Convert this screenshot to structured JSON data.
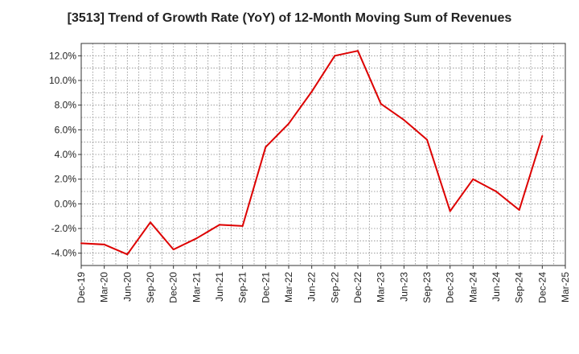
{
  "chart_data": {
    "type": "line",
    "title": "[3513]  Trend of Growth Rate (YoY) of 12-Month Moving Sum of Revenues",
    "xlabel": "",
    "ylabel": "",
    "x_ticks": [
      "Dec-19",
      "Mar-20",
      "Jun-20",
      "Sep-20",
      "Dec-20",
      "Mar-21",
      "Jun-21",
      "Sep-21",
      "Dec-21",
      "Mar-22",
      "Jun-22",
      "Sep-22",
      "Dec-22",
      "Mar-23",
      "Jun-23",
      "Sep-23",
      "Dec-23",
      "Mar-24",
      "Jun-24",
      "Sep-24",
      "Dec-24",
      "Mar-25"
    ],
    "y_ticks": [
      "12.0%",
      "10.0%",
      "8.0%",
      "6.0%",
      "4.0%",
      "2.0%",
      "0.0%",
      "-2.0%",
      "-4.0%"
    ],
    "y_tick_values": [
      12,
      10,
      8,
      6,
      4,
      2,
      0,
      -2,
      -4
    ],
    "ylim": [
      -5,
      13
    ],
    "grid": true,
    "line_color": "#dd0000",
    "series": [
      {
        "x": [
          "Dec-19",
          "Mar-20",
          "Jun-20",
          "Sep-20",
          "Dec-20",
          "Mar-21",
          "Jun-21",
          "Sep-21",
          "Dec-21",
          "Mar-22",
          "Jun-22",
          "Sep-22",
          "Dec-22",
          "Mar-23",
          "Jun-23",
          "Sep-23",
          "Dec-23",
          "Mar-24",
          "Jun-24",
          "Sep-24",
          "Dec-24"
        ],
        "values": [
          -3.2,
          -3.3,
          -4.1,
          -1.5,
          -3.7,
          -2.8,
          -1.7,
          -1.8,
          4.6,
          6.5,
          9.1,
          12.0,
          12.4,
          8.1,
          6.8,
          5.2,
          -0.6,
          2.0,
          1.0,
          -0.5,
          5.5
        ]
      }
    ]
  }
}
